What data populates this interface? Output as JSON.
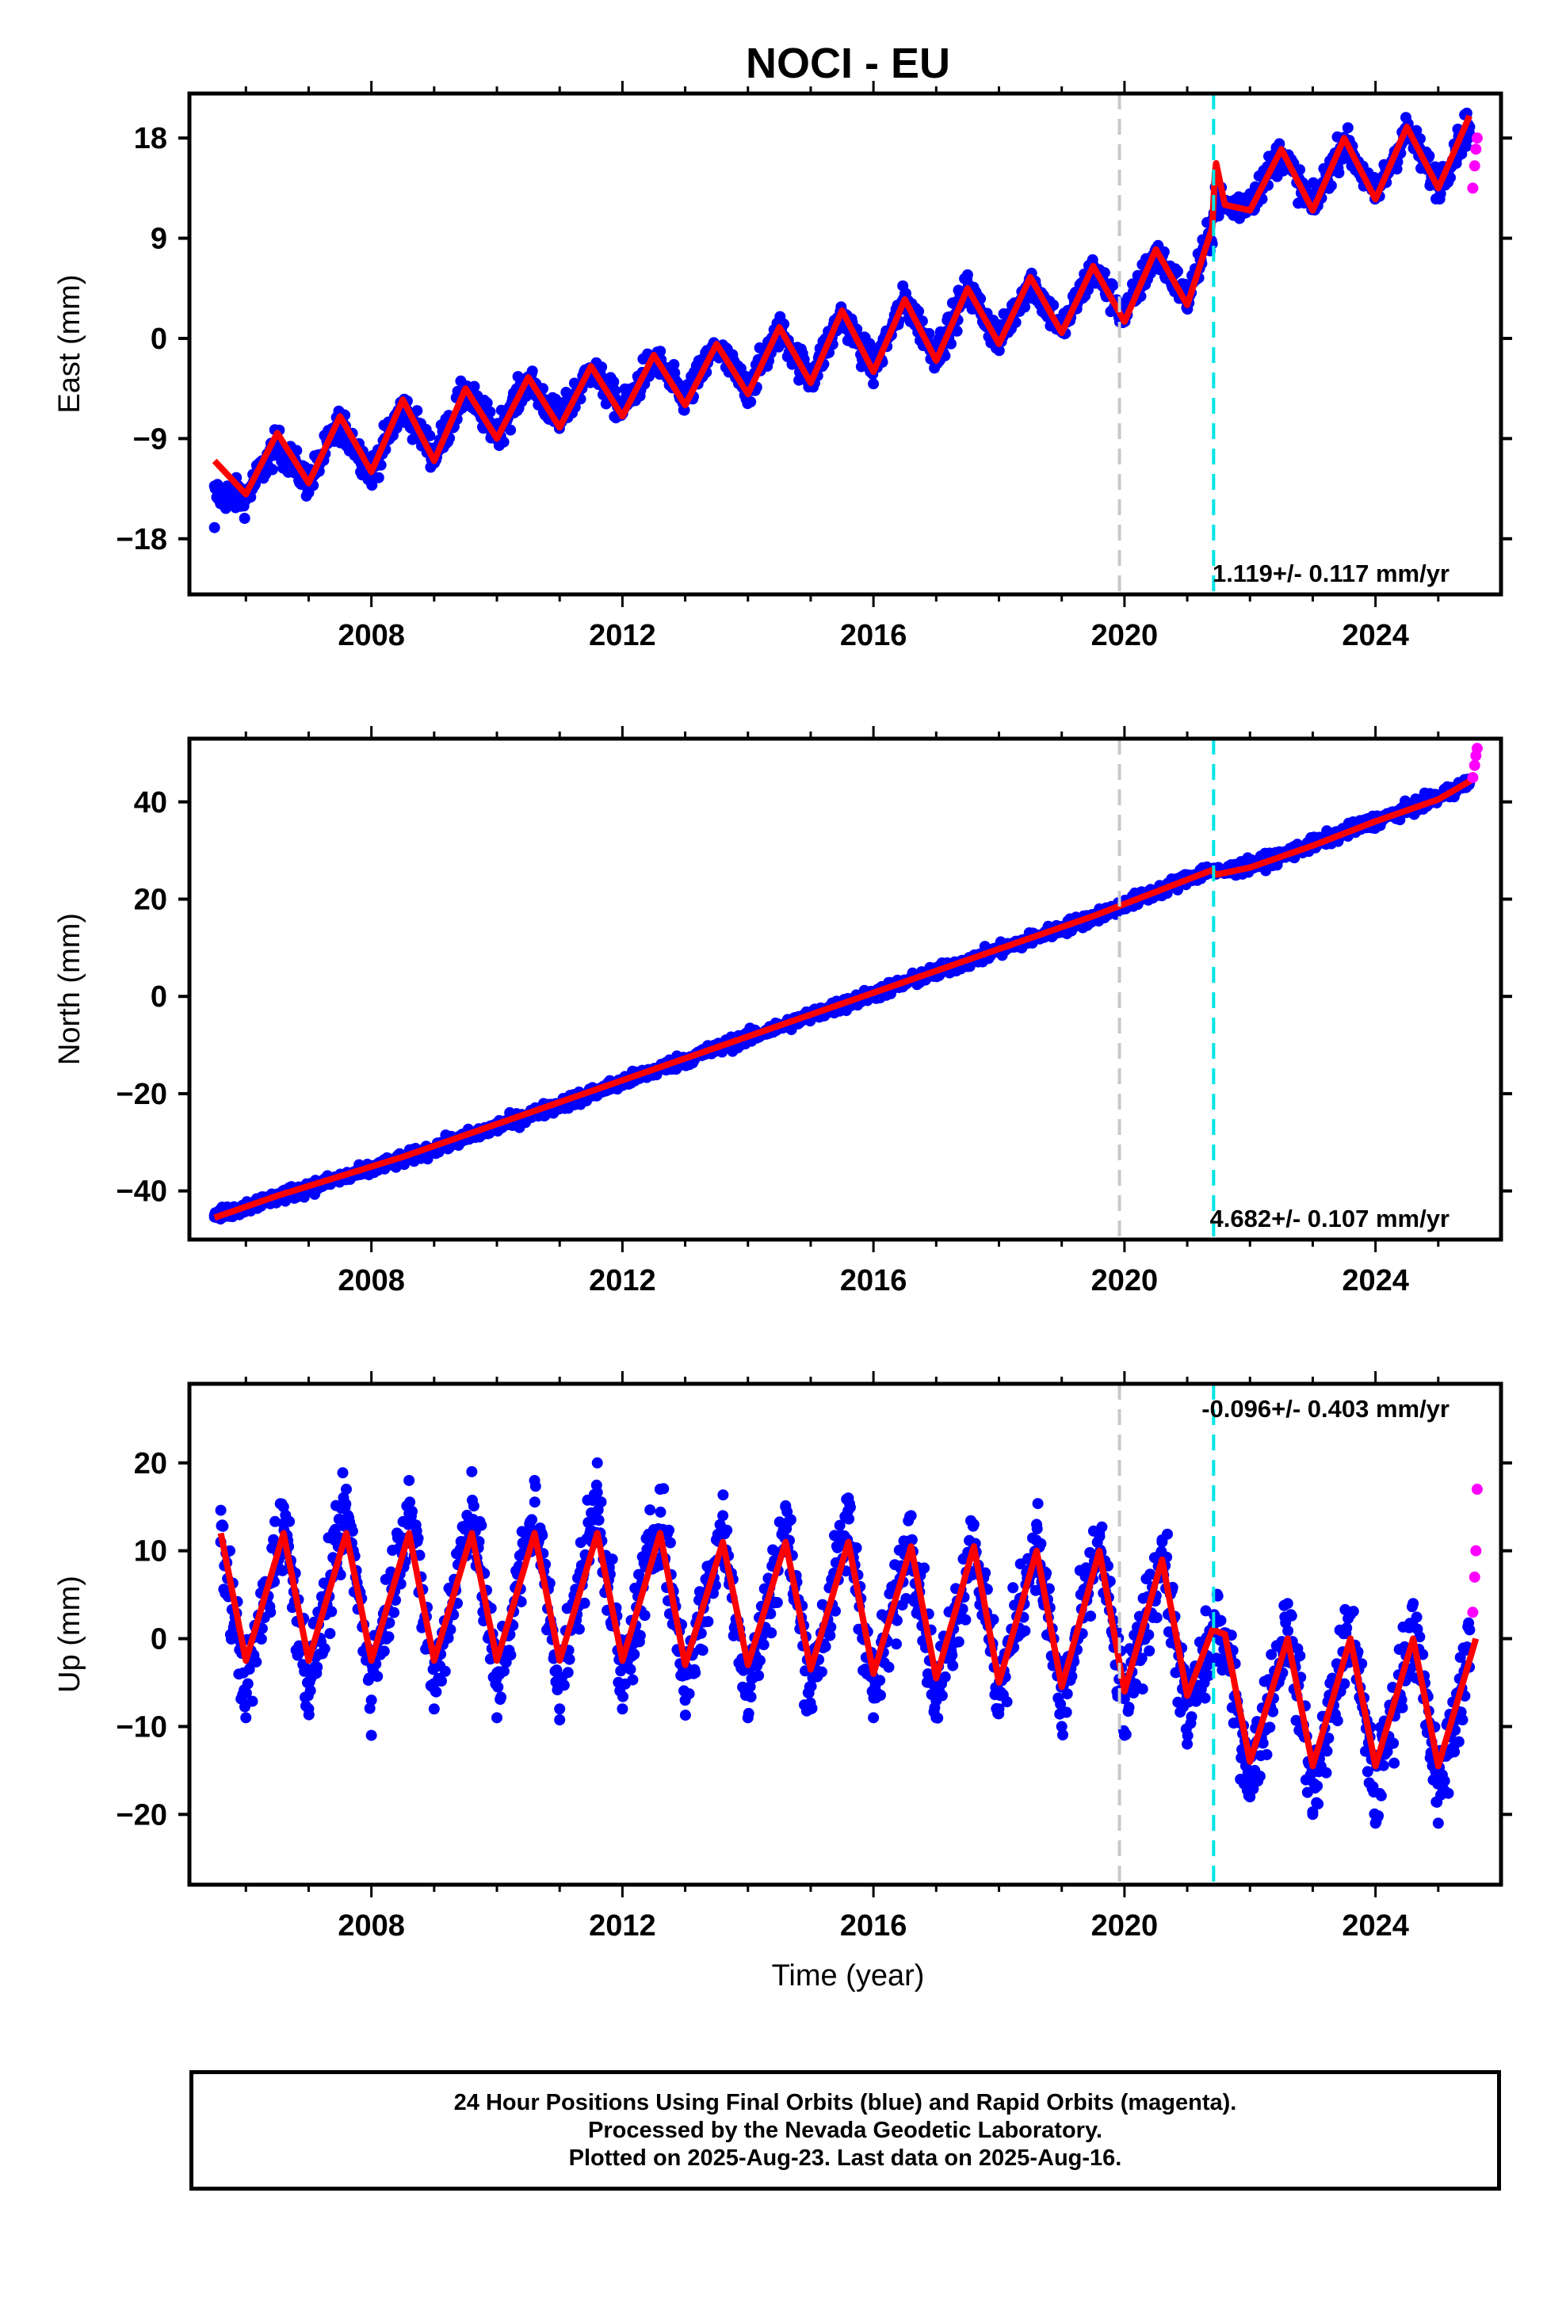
{
  "title": "NOCI - EU",
  "xlabel": "Time (year)",
  "colors": {
    "final": "#0000ff",
    "rapid": "#ff00ff",
    "model": "#ff0000",
    "break_gray": "#c8c8c8",
    "break_cyan": "#00e5e5"
  },
  "break_lines": {
    "gray": 2019.92,
    "cyan": 2021.42
  },
  "x_ticks": [
    "2008",
    "2012",
    "2016",
    "2020",
    "2024"
  ],
  "caption": {
    "line1": "24 Hour Positions Using Final Orbits (blue) and Rapid Orbits (magenta).",
    "line2": "Processed by the Nevada Geodetic Laboratory.",
    "line3": "Plotted on 2025-Aug-23. Last data on 2025-Aug-16."
  },
  "chart_data": [
    {
      "type": "scatter",
      "component": "east",
      "ylabel": "East (mm)",
      "xlim": [
        2005.1,
        2026.0
      ],
      "ylim": [
        -23,
        22
      ],
      "yticks": [
        "18",
        "9",
        "0",
        "-9",
        "-18"
      ],
      "yticks_values": [
        18,
        9,
        0,
        -9,
        -18
      ],
      "annotation": "1.119+/- 0.117 mm/yr",
      "annotation_pos": "bottom-right",
      "series": [
        {
          "kind": "final",
          "x": [
            2005.5,
            2006.0,
            2006.5,
            2007.0,
            2007.5,
            2008.0,
            2008.5,
            2009.0,
            2009.5,
            2010.0,
            2010.5,
            2011.0,
            2011.5,
            2012.0,
            2012.5,
            2013.0,
            2013.5,
            2014.0,
            2014.5,
            2015.0,
            2015.5,
            2016.0,
            2016.5,
            2017.0,
            2017.5,
            2018.0,
            2018.5,
            2019.0,
            2019.5,
            2020.0,
            2020.5,
            2021.0,
            2021.35,
            2021.5,
            2022.0,
            2022.5,
            2023.0,
            2023.5,
            2024.0,
            2024.5,
            2025.0,
            2025.5
          ],
          "y": [
            -17.0,
            -14.5,
            -10.5,
            -13.0,
            -8.0,
            -12.0,
            -6.5,
            -10.0,
            -5.0,
            -8.0,
            -4.0,
            -7.0,
            -3.0,
            -6.0,
            -2.0,
            -5.0,
            -1.0,
            -4.5,
            0.5,
            -3.5,
            2.0,
            -2.5,
            3.5,
            -1.0,
            4.5,
            0.0,
            5.0,
            1.0,
            6.0,
            2.5,
            7.5,
            4.0,
            9.0,
            11.0,
            13.0,
            16.5,
            12.0,
            17.5,
            13.0,
            18.5,
            14.0,
            19.0
          ]
        },
        {
          "kind": "rapid",
          "x": [
            2025.55,
            2025.58,
            2025.6,
            2025.62
          ],
          "y": [
            13.5,
            15.5,
            17.0,
            18.0
          ]
        },
        {
          "kind": "model",
          "x": [
            2005.5,
            2006.0,
            2006.5,
            2007.0,
            2007.5,
            2008.0,
            2008.5,
            2009.0,
            2009.5,
            2010.0,
            2010.5,
            2011.0,
            2011.5,
            2012.0,
            2012.5,
            2013.0,
            2013.5,
            2014.0,
            2014.5,
            2015.0,
            2015.5,
            2016.0,
            2016.5,
            2017.0,
            2017.5,
            2018.0,
            2018.5,
            2019.0,
            2019.5,
            2020.0,
            2020.5,
            2021.0,
            2021.4,
            2021.45,
            2021.6,
            2022.0,
            2022.5,
            2023.0,
            2023.5,
            2024.0,
            2024.5,
            2025.0,
            2025.5
          ],
          "y": [
            -11.0,
            -14.0,
            -8.5,
            -13.0,
            -7.0,
            -12.0,
            -5.5,
            -11.0,
            -4.5,
            -9.0,
            -3.5,
            -8.0,
            -2.5,
            -7.0,
            -1.5,
            -6.0,
            -0.5,
            -5.0,
            1.0,
            -4.0,
            2.5,
            -3.0,
            3.5,
            -2.0,
            4.5,
            -0.5,
            5.5,
            0.5,
            6.5,
            1.5,
            8.0,
            3.0,
            10.0,
            16.0,
            12.0,
            11.5,
            17.0,
            11.5,
            18.0,
            12.5,
            19.0,
            13.5,
            20.0
          ]
        }
      ]
    },
    {
      "type": "scatter",
      "component": "north",
      "ylabel": "North (mm)",
      "xlim": [
        2005.1,
        2026.0
      ],
      "ylim": [
        -50,
        53
      ],
      "yticks": [
        "40",
        "20",
        "0",
        "-20",
        "-40"
      ],
      "yticks_values": [
        40,
        20,
        0,
        -20,
        -40
      ],
      "annotation": "4.682+/- 0.107 mm/yr",
      "annotation_pos": "bottom-right",
      "series": [
        {
          "kind": "final",
          "x": [
            2005.5,
            2006.5,
            2007.5,
            2008.5,
            2009.5,
            2010.5,
            2011.5,
            2012.5,
            2013.5,
            2014.5,
            2015.5,
            2016.5,
            2017.5,
            2018.5,
            2019.5,
            2020.5,
            2021.3,
            2021.6,
            2022.5,
            2023.5,
            2024.5,
            2025.5
          ],
          "y": [
            -45.0,
            -41.5,
            -38.0,
            -34.0,
            -29.5,
            -25.0,
            -20.5,
            -15.5,
            -11.0,
            -6.5,
            -2.0,
            2.5,
            7.0,
            11.5,
            16.0,
            21.5,
            26.0,
            26.0,
            29.0,
            34.0,
            38.5,
            44.0
          ]
        },
        {
          "kind": "rapid",
          "x": [
            2025.55,
            2025.58,
            2025.6,
            2025.62
          ],
          "y": [
            45.0,
            47.5,
            49.5,
            51.0
          ]
        },
        {
          "kind": "model",
          "x": [
            2005.5,
            2006.5,
            2007.5,
            2008.5,
            2009.5,
            2010.5,
            2011.5,
            2012.5,
            2013.5,
            2014.5,
            2015.5,
            2016.5,
            2017.5,
            2018.5,
            2019.5,
            2020.5,
            2021.4,
            2021.45,
            2022.0,
            2023.0,
            2024.0,
            2025.0,
            2025.6
          ],
          "y": [
            -45.5,
            -41.0,
            -37.0,
            -33.0,
            -28.5,
            -24.0,
            -19.5,
            -15.0,
            -10.5,
            -6.0,
            -1.5,
            3.0,
            7.5,
            12.0,
            16.5,
            21.5,
            26.0,
            25.0,
            26.5,
            31.0,
            36.0,
            40.5,
            45.0
          ]
        }
      ]
    },
    {
      "type": "scatter",
      "component": "up",
      "ylabel": "Up (mm)",
      "xlim": [
        2005.1,
        2026.0
      ],
      "ylim": [
        -28,
        29
      ],
      "yticks": [
        "20",
        "10",
        "0",
        "-10",
        "-20"
      ],
      "yticks_values": [
        20,
        10,
        0,
        -10,
        -20
      ],
      "annotation": "-0.096+/- 0.403 mm/yr",
      "annotation_pos": "top-right",
      "series": [
        {
          "kind": "final",
          "x": [
            2005.6,
            2006.0,
            2006.6,
            2007.0,
            2007.6,
            2008.0,
            2008.6,
            2009.0,
            2009.6,
            2010.0,
            2010.6,
            2011.0,
            2011.6,
            2012.0,
            2012.6,
            2013.0,
            2013.6,
            2014.0,
            2014.6,
            2015.0,
            2015.6,
            2016.0,
            2016.6,
            2017.0,
            2017.6,
            2018.0,
            2018.6,
            2019.0,
            2019.6,
            2020.0,
            2020.6,
            2021.0,
            2021.5,
            2022.0,
            2022.6,
            2023.0,
            2023.6,
            2024.0,
            2024.6,
            2025.0,
            2025.5
          ],
          "y": [
            11.0,
            -9.0,
            15.0,
            -8.0,
            17.0,
            -7.0,
            18.0,
            -8.0,
            19.0,
            -9.0,
            18.0,
            -8.0,
            20.0,
            -8.0,
            17.0,
            -7.0,
            14.0,
            -9.0,
            15.0,
            -8.0,
            16.0,
            -9.0,
            14.0,
            -9.0,
            13.0,
            -8.0,
            13.0,
            -10.0,
            12.0,
            -11.0,
            11.0,
            -12.0,
            2.0,
            -18.0,
            4.0,
            -20.0,
            3.0,
            -21.0,
            4.0,
            -21.0,
            1.0
          ]
        },
        {
          "kind": "rapid",
          "x": [
            2025.55,
            2025.58,
            2025.6,
            2025.62
          ],
          "y": [
            3.0,
            7.0,
            10.0,
            17.0
          ]
        },
        {
          "kind": "model",
          "x": [
            2005.6,
            2006.0,
            2006.6,
            2007.0,
            2007.6,
            2008.0,
            2008.6,
            2009.0,
            2009.6,
            2010.0,
            2010.6,
            2011.0,
            2011.6,
            2012.0,
            2012.6,
            2013.0,
            2013.6,
            2014.0,
            2014.6,
            2015.0,
            2015.6,
            2016.0,
            2016.6,
            2017.0,
            2017.6,
            2018.0,
            2018.6,
            2019.0,
            2019.6,
            2020.0,
            2020.6,
            2021.0,
            2021.4,
            2021.6,
            2022.0,
            2022.6,
            2023.0,
            2023.6,
            2024.0,
            2024.6,
            2025.0,
            2025.6
          ],
          "y": [
            12.0,
            -2.5,
            12.0,
            -2.5,
            12.0,
            -2.5,
            12.0,
            -2.5,
            12.0,
            -2.5,
            12.0,
            -2.5,
            12.0,
            -2.5,
            12.0,
            -3.0,
            11.0,
            -3.0,
            11.0,
            -3.5,
            11.0,
            -4.0,
            10.5,
            -4.5,
            10.5,
            -5.0,
            10.0,
            -5.5,
            10.0,
            -6.0,
            9.0,
            -6.5,
            1.0,
            0.5,
            -14.0,
            0.0,
            -14.5,
            0.0,
            -14.5,
            0.0,
            -14.5,
            0.0
          ]
        }
      ]
    }
  ]
}
